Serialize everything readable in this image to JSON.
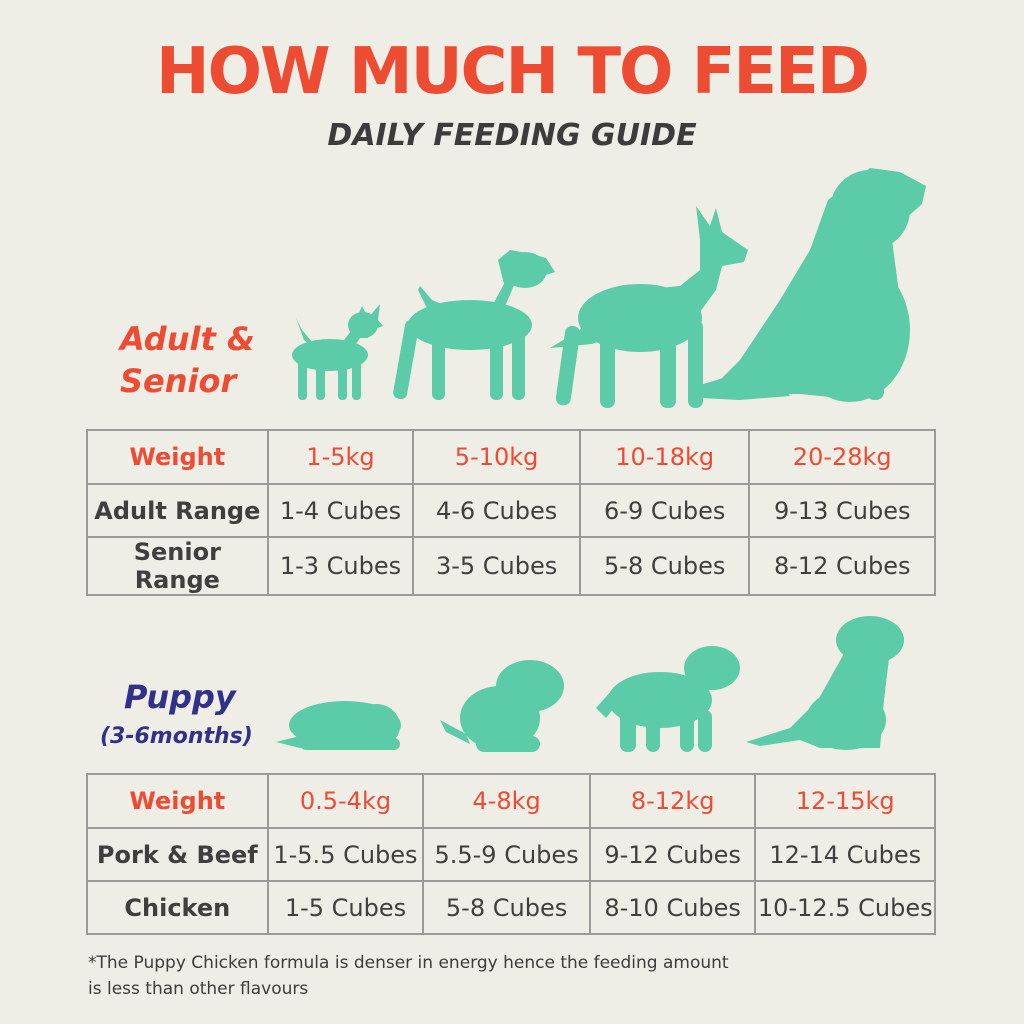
{
  "header": {
    "title": "HOW MUCH TO FEED",
    "subtitle": "DAILY FEEDING GUIDE"
  },
  "adult": {
    "label_line1": "Adult &",
    "label_line2": "Senior",
    "table": {
      "weight_label": "Weight",
      "weights": [
        "1-5kg",
        "5-10kg",
        "10-18kg",
        "20-28kg"
      ],
      "rows": [
        {
          "label": "Adult Range",
          "values": [
            "1-4 Cubes",
            "4-6 Cubes",
            "6-9 Cubes",
            "9-13 Cubes"
          ]
        },
        {
          "label": "Senior Range",
          "values": [
            "1-3 Cubes",
            "3-5 Cubes",
            "5-8 Cubes",
            "8-12 Cubes"
          ]
        }
      ]
    }
  },
  "puppy": {
    "label": "Puppy",
    "sublabel": "(3-6months)",
    "table": {
      "weight_label": "Weight",
      "weights": [
        "0.5-4kg",
        "4-8kg",
        "8-12kg",
        "12-15kg"
      ],
      "rows": [
        {
          "label": "Pork & Beef",
          "values": [
            "1-5.5 Cubes",
            "5.5-9 Cubes",
            "9-12 Cubes",
            "12-14 Cubes"
          ]
        },
        {
          "label": "Chicken",
          "values": [
            "1-5 Cubes",
            "5-8 Cubes",
            "8-10 Cubes",
            "10-12.5 Cubes"
          ]
        }
      ]
    }
  },
  "footnote": {
    "line1": "*The Puppy Chicken formula is denser in energy hence the feeding amount",
    "line2": "is less than other flavours"
  },
  "colors": {
    "background": "#efeee6",
    "accent_red": "#ee4b33",
    "accent_navy": "#33308a",
    "dog_teal": "#5ccba7",
    "border_grey": "#9a9a9a"
  },
  "icons": {
    "adult_dogs": [
      "chihuahua-icon",
      "terrier-icon",
      "shepherd-icon",
      "retriever-icon"
    ],
    "puppy_dogs": [
      "lying-puppy-icon",
      "small-puppy-icon",
      "standing-puppy-icon",
      "sitting-puppy-icon"
    ]
  }
}
